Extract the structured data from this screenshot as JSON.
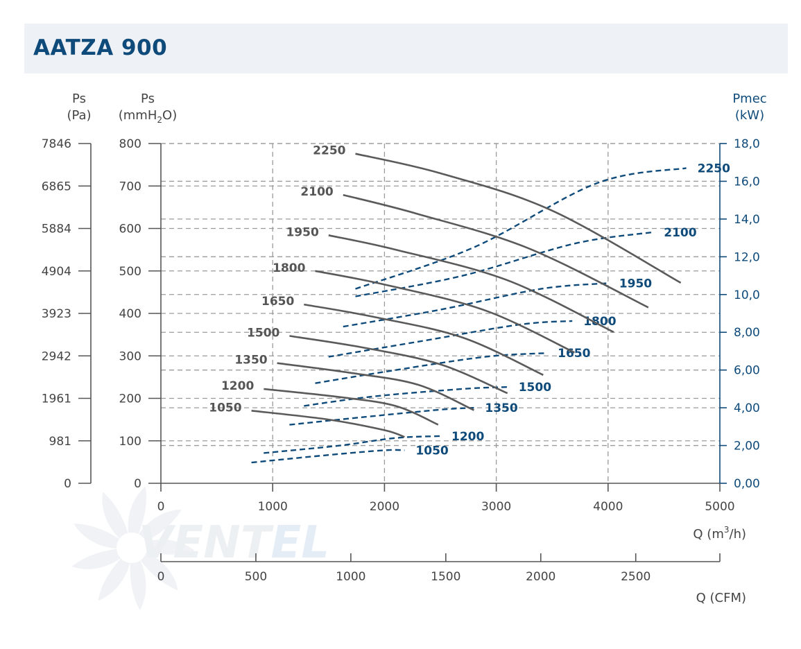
{
  "header": {
    "title": "AATZA 900"
  },
  "colors": {
    "pressure_curve": "#5a5a5a",
    "power_curve": "#0e4a7a",
    "grid": "#9a9a9a",
    "header_bg": "#eef1f5"
  },
  "axes": {
    "pa_label": [
      "Ps",
      "(Pa)"
    ],
    "mmh2o_label_top": "Ps",
    "mmh2o_label": {
      "pre": "(mmH",
      "sub": "2",
      "post": "O)"
    },
    "pmec_label": [
      "Pmec",
      "(kW)"
    ],
    "q_m3h_label": {
      "pre": "Q (m",
      "sup": "3",
      "post": "/h)"
    },
    "q_cfm_label": "Q (CFM)",
    "pa_ticks": [
      "0",
      "981",
      "1961",
      "2942",
      "3923",
      "4904",
      "5884",
      "6865",
      "7846"
    ],
    "mmh2o_ticks": [
      "0",
      "100",
      "200",
      "300",
      "400",
      "500",
      "600",
      "700",
      "800"
    ],
    "kw_ticks": [
      "0,00",
      "2,00",
      "4,00",
      "6,00",
      "8,00",
      "10,0",
      "12,0",
      "14,0",
      "16,0",
      "18,0"
    ],
    "q_ticks": [
      "0",
      "1000",
      "2000",
      "3000",
      "4000",
      "5000"
    ],
    "cfm_ticks": [
      "0",
      "500",
      "1000",
      "1500",
      "2000",
      "2500"
    ]
  },
  "watermark": {
    "brand_a": "VENT",
    "brand_b": "EL"
  },
  "chart_data": {
    "type": "line",
    "x_unit": "Q (m3/h)",
    "xlim": [
      0,
      5000
    ],
    "ylim_mmh2o": [
      0,
      800
    ],
    "ylim_kw": [
      0,
      18
    ],
    "grid": true,
    "pressure_series": [
      {
        "name": "1050",
        "points": [
          [
            810,
            171
          ],
          [
            1500,
            150
          ],
          [
            2000,
            125
          ],
          [
            2180,
            109
          ]
        ]
      },
      {
        "name": "1200",
        "points": [
          [
            920,
            222
          ],
          [
            1600,
            203
          ],
          [
            2100,
            182
          ],
          [
            2480,
            138
          ]
        ]
      },
      {
        "name": "1350",
        "points": [
          [
            1040,
            283
          ],
          [
            1700,
            260
          ],
          [
            2300,
            232
          ],
          [
            2800,
            172
          ]
        ]
      },
      {
        "name": "1500",
        "points": [
          [
            1150,
            347
          ],
          [
            1800,
            320
          ],
          [
            2500,
            280
          ],
          [
            3100,
            212
          ]
        ]
      },
      {
        "name": "1650",
        "points": [
          [
            1280,
            421
          ],
          [
            1900,
            392
          ],
          [
            2700,
            343
          ],
          [
            3420,
            255
          ]
        ]
      },
      {
        "name": "1800",
        "points": [
          [
            1380,
            500
          ],
          [
            2000,
            468
          ],
          [
            2900,
            407
          ],
          [
            3700,
            308
          ]
        ]
      },
      {
        "name": "1950",
        "points": [
          [
            1500,
            584
          ],
          [
            2100,
            550
          ],
          [
            3100,
            478
          ],
          [
            4050,
            356
          ]
        ]
      },
      {
        "name": "2100",
        "points": [
          [
            1630,
            679
          ],
          [
            2300,
            634
          ],
          [
            3300,
            552
          ],
          [
            4360,
            414
          ]
        ]
      },
      {
        "name": "2250",
        "points": [
          [
            1740,
            776
          ],
          [
            2500,
            730
          ],
          [
            3500,
            642
          ],
          [
            4650,
            472
          ]
        ]
      }
    ],
    "power_series": [
      {
        "name": "1050",
        "points": [
          [
            810,
            1.1
          ],
          [
            1500,
            1.5
          ],
          [
            2000,
            1.75
          ],
          [
            2180,
            1.75
          ]
        ]
      },
      {
        "name": "1200",
        "points": [
          [
            920,
            1.6
          ],
          [
            1600,
            2.0
          ],
          [
            2100,
            2.4
          ],
          [
            2500,
            2.5
          ]
        ]
      },
      {
        "name": "1350",
        "points": [
          [
            1150,
            3.1
          ],
          [
            1800,
            3.5
          ],
          [
            2500,
            3.9
          ],
          [
            2800,
            4.0
          ]
        ]
      },
      {
        "name": "1500",
        "points": [
          [
            1280,
            4.1
          ],
          [
            1900,
            4.6
          ],
          [
            2700,
            5.0
          ],
          [
            3100,
            5.1
          ]
        ]
      },
      {
        "name": "1650",
        "points": [
          [
            1380,
            5.3
          ],
          [
            2100,
            6.0
          ],
          [
            2900,
            6.7
          ],
          [
            3450,
            6.9
          ]
        ]
      },
      {
        "name": "1800",
        "points": [
          [
            1500,
            6.7
          ],
          [
            2300,
            7.5
          ],
          [
            3200,
            8.4
          ],
          [
            3680,
            8.6
          ]
        ]
      },
      {
        "name": "1950",
        "points": [
          [
            1630,
            8.3
          ],
          [
            2500,
            9.2
          ],
          [
            3400,
            10.3
          ],
          [
            4000,
            10.6
          ]
        ]
      },
      {
        "name": "2100",
        "points": [
          [
            1740,
            9.9
          ],
          [
            2700,
            11.0
          ],
          [
            3700,
            12.7
          ],
          [
            4400,
            13.3
          ]
        ]
      },
      {
        "name": "2250",
        "points": [
          [
            1740,
            10.3
          ],
          [
            2800,
            12.5
          ],
          [
            3900,
            15.9
          ],
          [
            4700,
            16.7
          ]
        ]
      }
    ]
  }
}
